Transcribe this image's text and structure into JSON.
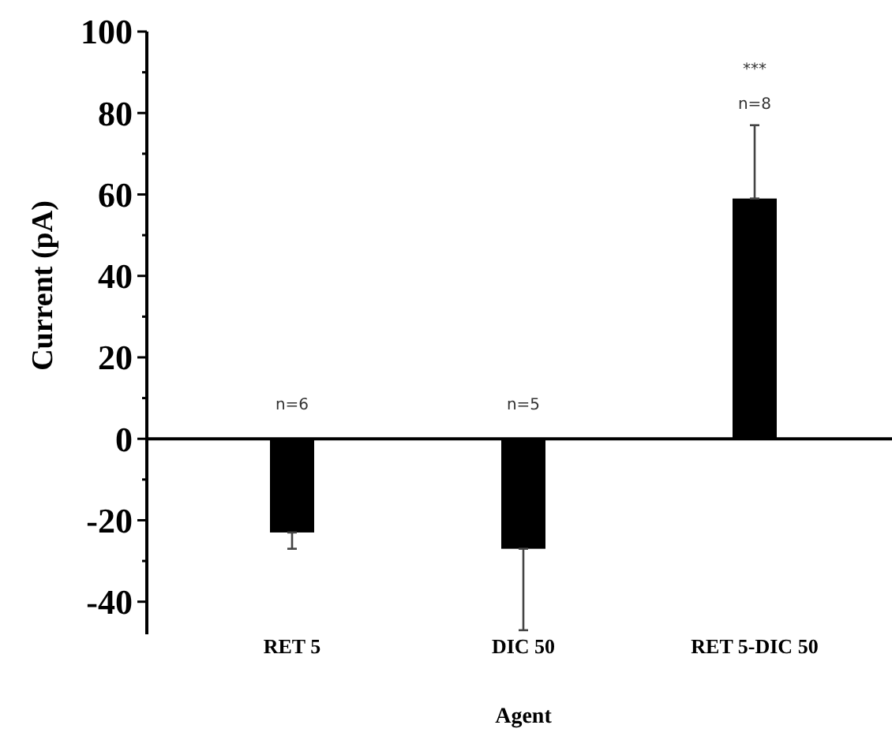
{
  "chart_data": {
    "type": "bar",
    "xlabel": "Agent",
    "ylabel": "Current (pA)",
    "categories": [
      "RET 5",
      "DIC 50",
      "RET 5-DIC 50"
    ],
    "values": [
      -23,
      -27,
      59
    ],
    "errors": [
      [
        -27,
        -23
      ],
      [
        -47,
        -27
      ],
      [
        59,
        77
      ]
    ],
    "color": "#000000",
    "ylim": [
      -48,
      100
    ],
    "yticks": [
      {
        "value": -40,
        "label": "-40"
      },
      {
        "value": -30,
        "label": null
      },
      {
        "value": -20,
        "label": "-20"
      },
      {
        "value": -10,
        "label": null
      },
      0,
      {
        "value": 10,
        "label": null
      },
      20,
      {
        "value": 30,
        "label": null
      },
      40,
      {
        "value": 50,
        "label": null
      },
      60,
      {
        "value": 70,
        "label": null
      },
      80,
      {
        "value": 90,
        "label": null
      },
      100
    ],
    "annotations": [
      "n=6",
      "n=5",
      "n=8",
      "***"
    ]
  }
}
